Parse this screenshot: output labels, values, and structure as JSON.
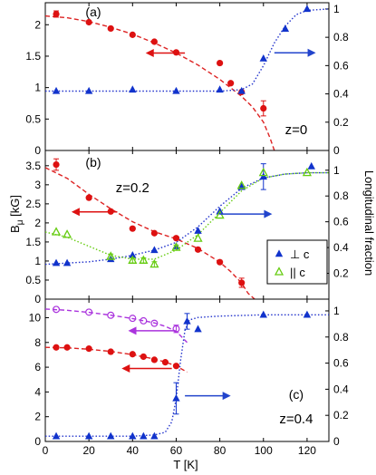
{
  "chart_data": {
    "type": "scatter",
    "xlabel": "T [K]",
    "x_ticks": [
      0,
      20,
      40,
      60,
      80,
      100,
      120
    ],
    "xlim": [
      0,
      130
    ],
    "ylabel_left": "B_μ [kG]",
    "ylabel_right": "Longitudinal fraction",
    "grid": false,
    "panels": [
      {
        "label": "(a)",
        "annotation": "z=0",
        "ylim": [
          0,
          2.35
        ],
        "yticks": [
          0,
          0.5,
          1,
          1.5,
          2
        ],
        "ytick_labels": [
          "0",
          "0.5",
          "1",
          "1.5",
          "2"
        ],
        "right_ylim": [
          0,
          1.0444
        ],
        "right_ticks": [
          0,
          0.2,
          0.4,
          0.6,
          0.8,
          1
        ],
        "right_tick_labels": [
          "0",
          "0.2",
          "0.4",
          "0.6",
          "0.8",
          "1"
        ],
        "series": [
          {
            "marker": "circle",
            "color": "#dd1111",
            "axis": "left",
            "x": [
              5,
              20,
              30,
              40,
              50,
              60,
              80,
              85,
              90,
              100
            ],
            "y": [
              2.17,
              2.04,
              1.94,
              1.84,
              1.73,
              1.56,
              1.39,
              1.07,
              0.93,
              0.67
            ],
            "yerr": [
              0.05,
              0,
              0,
              0,
              0,
              0,
              0,
              0,
              0,
              0.12
            ]
          },
          {
            "marker": "triangle-up",
            "color": "#1133cc",
            "axis": "right",
            "x": [
              5,
              20,
              40,
              60,
              80,
              90,
              100,
              110,
              120
            ],
            "y": [
              0.42,
              0.42,
              0.43,
              0.42,
              0.43,
              0.42,
              0.65,
              0.86,
              1.0
            ],
            "yerr": [
              0,
              0,
              0,
              0,
              0,
              0,
              0,
              0,
              0
            ]
          }
        ],
        "fits": [
          {
            "style": "dashed",
            "color": "#dd2222",
            "axis": "left",
            "x": [
              0,
              10,
              20,
              30,
              40,
              50,
              60,
              70,
              80,
              90,
              95,
              100,
              103,
              105
            ],
            "y": [
              2.14,
              2.11,
              2.05,
              1.96,
              1.85,
              1.71,
              1.55,
              1.36,
              1.13,
              0.86,
              0.69,
              0.45,
              0.2,
              0
            ]
          },
          {
            "style": "dotted",
            "color": "#2233cc",
            "axis": "right",
            "x": [
              0,
              20,
              40,
              60,
              80,
              90,
              95,
              100,
              105,
              110,
              115,
              120,
              130
            ],
            "y": [
              0.42,
              0.42,
              0.42,
              0.42,
              0.42,
              0.43,
              0.47,
              0.6,
              0.76,
              0.88,
              0.96,
              0.99,
              1.0
            ]
          }
        ],
        "arrows": [
          {
            "color": "#dd1111",
            "direction": "left",
            "x1": 64,
            "x2": 46,
            "y": 1.55,
            "axis": "left"
          },
          {
            "color": "#2244cc",
            "direction": "right",
            "x1": 105,
            "x2": 124,
            "y": 0.69,
            "axis": "right"
          }
        ]
      },
      {
        "label": "(b)",
        "annotation": "z=0.2",
        "ylim": [
          0,
          3.9
        ],
        "yticks": [
          0,
          0.5,
          1,
          1.5,
          2,
          2.5,
          3,
          3.5
        ],
        "ytick_labels": [
          "0",
          "0.5",
          "1",
          "1.5",
          "2",
          "2.5",
          "3",
          "3.5"
        ],
        "right_ylim": [
          0,
          1.153
        ],
        "right_ticks": [
          0.2,
          0.4,
          0.6,
          0.8,
          1
        ],
        "right_tick_labels": [
          "0.2",
          "0.4",
          "0.6",
          "0.8",
          "1"
        ],
        "legend": {
          "placement": "lower-right",
          "entries": [
            {
              "label": "⊥ c",
              "marker": "triangle-up",
              "color": "#1133cc"
            },
            {
              "label": "|| c",
              "marker": "triangle-open",
              "color": "#66cc11"
            }
          ]
        },
        "series": [
          {
            "marker": "circle",
            "color": "#dd1111",
            "axis": "left",
            "x": [
              5,
              20,
              30,
              40,
              50,
              60,
              70,
              80,
              90
            ],
            "y": [
              3.53,
              2.66,
              2.3,
              1.85,
              1.73,
              1.6,
              1.3,
              0.97,
              0.43
            ],
            "yerr": [
              0.15,
              0,
              0,
              0,
              0,
              0,
              0,
              0,
              0.12
            ]
          },
          {
            "marker": "triangle-up",
            "color": "#1133cc",
            "axis": "right",
            "x": [
              5,
              10,
              30,
              40,
              50,
              60,
              70,
              80,
              90,
              100,
              122
            ],
            "y": [
              0.28,
              0.28,
              0.31,
              0.34,
              0.38,
              0.41,
              0.53,
              0.68,
              0.87,
              0.95,
              1.03
            ],
            "yerr": [
              0,
              0,
              0,
              0,
              0,
              0,
              0,
              0,
              0,
              0.1,
              0
            ]
          },
          {
            "marker": "triangle-open",
            "color": "#66cc11",
            "axis": "right",
            "x": [
              5,
              10,
              30,
              40,
              45,
              50,
              60,
              70,
              80,
              90,
              100,
              120
            ],
            "y": [
              0.52,
              0.5,
              0.33,
              0.3,
              0.3,
              0.27,
              0.4,
              0.47,
              0.65,
              0.88,
              0.98,
              0.98
            ],
            "yerr": [
              0,
              0,
              0.02,
              0.02,
              0.02,
              0.02,
              0.02,
              0,
              0,
              0,
              0,
              0
            ]
          }
        ],
        "fits": [
          {
            "style": "dashed",
            "color": "#dd2222",
            "axis": "left",
            "x": [
              0,
              10,
              20,
              30,
              40,
              50,
              60,
              70,
              80,
              85,
              90,
              93,
              96
            ],
            "y": [
              3.45,
              3.17,
              2.75,
              2.37,
              2.03,
              1.77,
              1.58,
              1.33,
              0.97,
              0.72,
              0.42,
              0.15,
              0
            ]
          },
          {
            "style": "dotted",
            "color": "#2233cc",
            "axis": "right",
            "x": [
              0,
              10,
              20,
              30,
              40,
              50,
              60,
              70,
              80,
              90,
              100,
              110,
              120,
              130
            ],
            "y": [
              0.27,
              0.28,
              0.29,
              0.31,
              0.34,
              0.38,
              0.44,
              0.56,
              0.72,
              0.86,
              0.94,
              0.97,
              0.98,
              0.98
            ]
          },
          {
            "style": "dotted",
            "color": "#66cc11",
            "axis": "right",
            "x": [
              0,
              10,
              20,
              30,
              40,
              50,
              60,
              70,
              80,
              90,
              100,
              110,
              120,
              130
            ],
            "y": [
              0.52,
              0.48,
              0.41,
              0.34,
              0.31,
              0.31,
              0.38,
              0.5,
              0.67,
              0.84,
              0.94,
              0.97,
              0.98,
              0.98
            ]
          }
        ],
        "arrows": [
          {
            "color": "#dd1111",
            "direction": "left",
            "x1": 33,
            "x2": 12,
            "y": 2.29,
            "axis": "left"
          },
          {
            "color": "#2244cc",
            "direction": "right",
            "x1": 80,
            "x2": 104,
            "y": 0.66,
            "axis": "right"
          }
        ]
      },
      {
        "label": "(c)",
        "annotation": "z=0.4",
        "ylim": [
          0,
          11.5
        ],
        "yticks": [
          0,
          2,
          4,
          6,
          8,
          10
        ],
        "ytick_labels": [
          "0",
          "2",
          "4",
          "6",
          "8",
          "10"
        ],
        "right_ylim": [
          0,
          1.09
        ],
        "right_ticks": [
          0,
          0.2,
          0.4,
          0.6,
          0.8,
          1
        ],
        "right_tick_labels": [
          "0",
          "0.2",
          "0.4",
          "0.6",
          "0.8",
          "1"
        ],
        "series": [
          {
            "marker": "circle-open",
            "color": "#aa33dd",
            "axis": "left",
            "x": [
              5,
              20,
              30,
              40,
              45,
              50,
              60
            ],
            "y": [
              10.67,
              10.45,
              10.2,
              9.95,
              9.75,
              9.55,
              9.1
            ],
            "yerr": [
              0,
              0,
              0,
              0,
              0,
              0,
              0.3
            ]
          },
          {
            "marker": "circle",
            "color": "#dd1111",
            "axis": "left",
            "x": [
              5,
              10,
              20,
              30,
              40,
              45,
              50,
              55,
              60
            ],
            "y": [
              7.6,
              7.6,
              7.5,
              7.25,
              7.05,
              6.85,
              6.6,
              6.4,
              6.1
            ],
            "yerr": [
              0,
              0,
              0,
              0,
              0,
              0,
              0,
              0,
              0
            ]
          },
          {
            "marker": "triangle-up",
            "color": "#1133cc",
            "axis": "right",
            "x": [
              5,
              20,
              30,
              40,
              45,
              50,
              60,
              65,
              70,
              100,
              120
            ],
            "y": [
              0.04,
              0.04,
              0.04,
              0.04,
              0.04,
              0.04,
              0.33,
              0.92,
              0.86,
              0.97,
              0.97
            ],
            "yerr": [
              0,
              0,
              0,
              0,
              0,
              0,
              0.12,
              0.06,
              0,
              0,
              0
            ]
          }
        ],
        "fits": [
          {
            "style": "dashed",
            "color": "#aa33dd",
            "axis": "left",
            "x": [
              0,
              10,
              20,
              30,
              40,
              50,
              55,
              60,
              65
            ],
            "y": [
              10.7,
              10.6,
              10.43,
              10.2,
              9.93,
              9.58,
              9.3,
              8.9,
              8.0
            ]
          },
          {
            "style": "dashed",
            "color": "#dd2222",
            "axis": "left",
            "x": [
              0,
              10,
              20,
              30,
              40,
              50,
              55,
              60,
              65
            ],
            "y": [
              7.6,
              7.57,
              7.45,
              7.27,
              7.02,
              6.66,
              6.42,
              6.1,
              5.6
            ]
          },
          {
            "style": "dotted",
            "color": "#2233cc",
            "axis": "right",
            "x": [
              0,
              20,
              40,
              50,
              55,
              58,
              60,
              62,
              64,
              66,
              70,
              80,
              100,
              130
            ],
            "y": [
              0.04,
              0.04,
              0.04,
              0.05,
              0.07,
              0.15,
              0.33,
              0.62,
              0.85,
              0.93,
              0.95,
              0.96,
              0.97,
              0.97
            ]
          }
        ],
        "arrows": [
          {
            "color": "#aa33dd",
            "direction": "left",
            "x1": 59,
            "x2": 38,
            "y": 8.95,
            "axis": "left"
          },
          {
            "color": "#dd1111",
            "direction": "left",
            "x1": 58,
            "x2": 35,
            "y": 5.9,
            "axis": "left"
          },
          {
            "color": "#2244cc",
            "direction": "right",
            "x1": 64,
            "x2": 85,
            "y": 0.35,
            "axis": "right"
          }
        ]
      }
    ]
  }
}
